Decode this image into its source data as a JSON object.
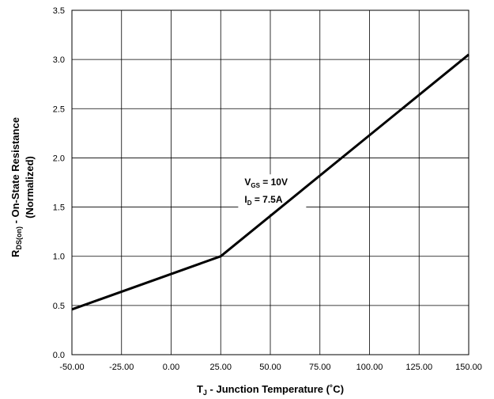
{
  "chart_data": {
    "type": "line",
    "xlabel": {
      "main": "T",
      "sub": "J",
      "rest": " - Junction Temperature (˚C)"
    },
    "ylabel": {
      "line1": {
        "main": "R",
        "sub": "DS(on)",
        "rest": " - On-State Resistance"
      },
      "line2": "(Normalized)"
    },
    "xlim": [
      -50,
      150
    ],
    "ylim": [
      0,
      3.5
    ],
    "x_ticks": [
      "-50.00",
      "-25.00",
      "0.00",
      "25.00",
      "50.00",
      "75.00",
      "100.00",
      "125.00",
      "150.00"
    ],
    "x_tick_values": [
      -50,
      -25,
      0,
      25,
      50,
      75,
      100,
      125,
      150
    ],
    "y_ticks": [
      "0.0",
      "0.5",
      "1.0",
      "1.5",
      "2.0",
      "2.5",
      "3.0",
      "3.5"
    ],
    "y_tick_values": [
      0,
      0.5,
      1.0,
      1.5,
      2.0,
      2.5,
      3.0,
      3.5
    ],
    "grid": true,
    "series": [
      {
        "x": [
          -50,
          25,
          150
        ],
        "y": [
          0.46,
          1.0,
          3.05
        ]
      }
    ],
    "annotation": {
      "line1": {
        "main": "V",
        "sub": "GS",
        "rest": " = 10V"
      },
      "line2": {
        "main": "I",
        "sub": "D",
        "rest": " = 7.5A"
      },
      "x": 37,
      "y": 1.72
    }
  }
}
